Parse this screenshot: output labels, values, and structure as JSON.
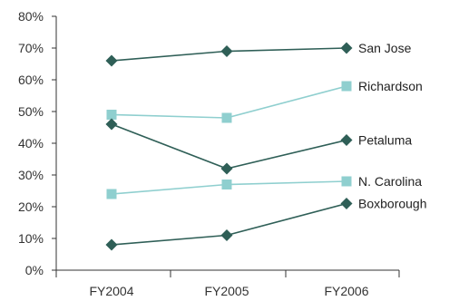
{
  "chart_data": {
    "type": "line",
    "title": "",
    "xlabel": "",
    "ylabel": "",
    "categories": [
      "FY2004",
      "FY2005",
      "FY2006"
    ],
    "ylim": [
      0,
      80
    ],
    "yticks": [
      "0%",
      "10%",
      "20%",
      "30%",
      "40%",
      "50%",
      "60%",
      "70%",
      "80%"
    ],
    "grid": false,
    "legend": "direct labels at right end of each line",
    "series": [
      {
        "name": "San Jose",
        "values": [
          66,
          69,
          70
        ],
        "marker": "diamond",
        "color": "#2f5f57"
      },
      {
        "name": "Richardson",
        "values": [
          49,
          48,
          58
        ],
        "marker": "square",
        "color": "#8fcfcf"
      },
      {
        "name": "Petaluma",
        "values": [
          46,
          32,
          41
        ],
        "marker": "diamond",
        "color": "#2f5f57"
      },
      {
        "name": "N. Carolina",
        "values": [
          24,
          27,
          28
        ],
        "marker": "square",
        "color": "#8fcfcf"
      },
      {
        "name": "Boxborough",
        "values": [
          8,
          11,
          21
        ],
        "marker": "diamond",
        "color": "#2f5f57"
      }
    ]
  }
}
